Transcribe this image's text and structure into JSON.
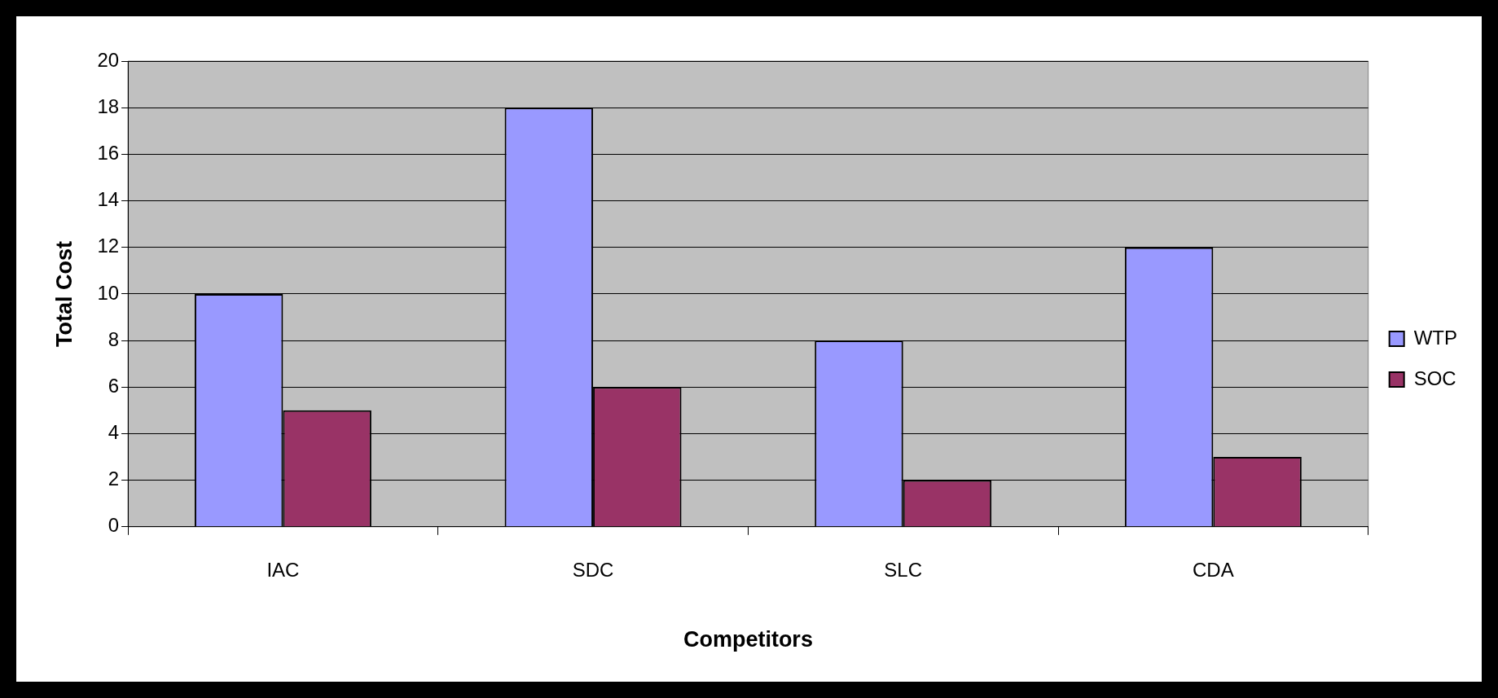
{
  "chart_data": {
    "type": "bar",
    "xlabel": "Competitors",
    "ylabel": "Total Cost",
    "categories": [
      "IAC",
      "SDC",
      "SLC",
      "CDA"
    ],
    "series": [
      {
        "name": "WTP",
        "color": "#9999ff",
        "values": [
          10,
          18,
          8,
          12
        ]
      },
      {
        "name": "SOC",
        "color": "#993366",
        "values": [
          5,
          6,
          2,
          3
        ]
      }
    ],
    "ylim": [
      0,
      20
    ],
    "yticks": [
      0,
      2,
      4,
      6,
      8,
      10,
      12,
      14,
      16,
      18,
      20
    ],
    "grid": "y",
    "legend": "right"
  }
}
